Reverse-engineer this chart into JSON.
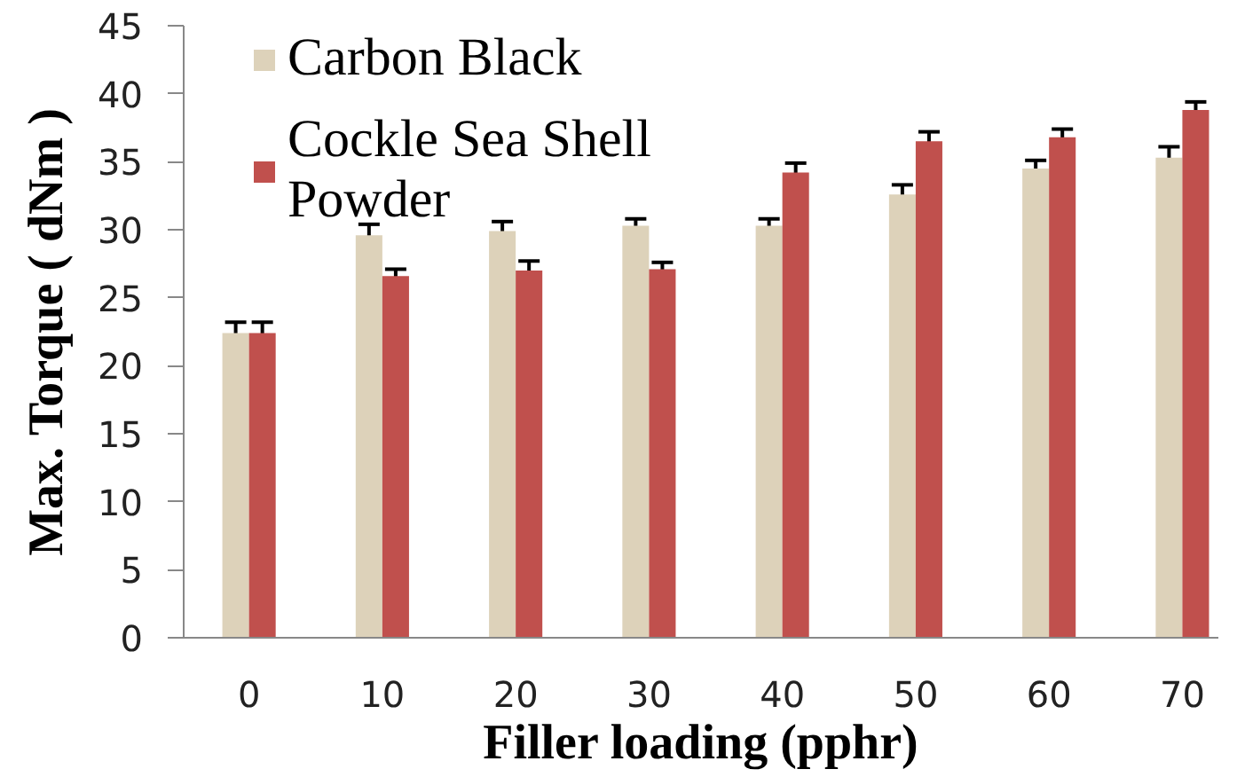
{
  "chart_data": {
    "type": "bar",
    "xlabel": "Filler loading (pphr)",
    "ylabel": "Max. Torque ( dNm )",
    "categories": [
      "0",
      "10",
      "20",
      "30",
      "40",
      "50",
      "60",
      "70"
    ],
    "series": [
      {
        "name": "Carbon Black",
        "color": "#ddd2ba",
        "values": [
          22.4,
          29.6,
          29.9,
          30.3,
          30.3,
          32.6,
          34.5,
          35.3
        ],
        "errors": [
          0.8,
          0.8,
          0.7,
          0.5,
          0.5,
          0.7,
          0.6,
          0.8
        ]
      },
      {
        "name": "Cockle Sea Shell Powder",
        "color": "#c0504d",
        "values": [
          22.4,
          26.6,
          27.0,
          27.1,
          34.2,
          36.5,
          36.8,
          38.8
        ],
        "errors": [
          0.8,
          0.5,
          0.7,
          0.5,
          0.7,
          0.7,
          0.6,
          0.6
        ]
      }
    ],
    "ylim": [
      0,
      45
    ],
    "yticks": [
      0,
      5,
      10,
      15,
      20,
      25,
      30,
      35,
      40,
      45
    ],
    "legend": "top left"
  }
}
